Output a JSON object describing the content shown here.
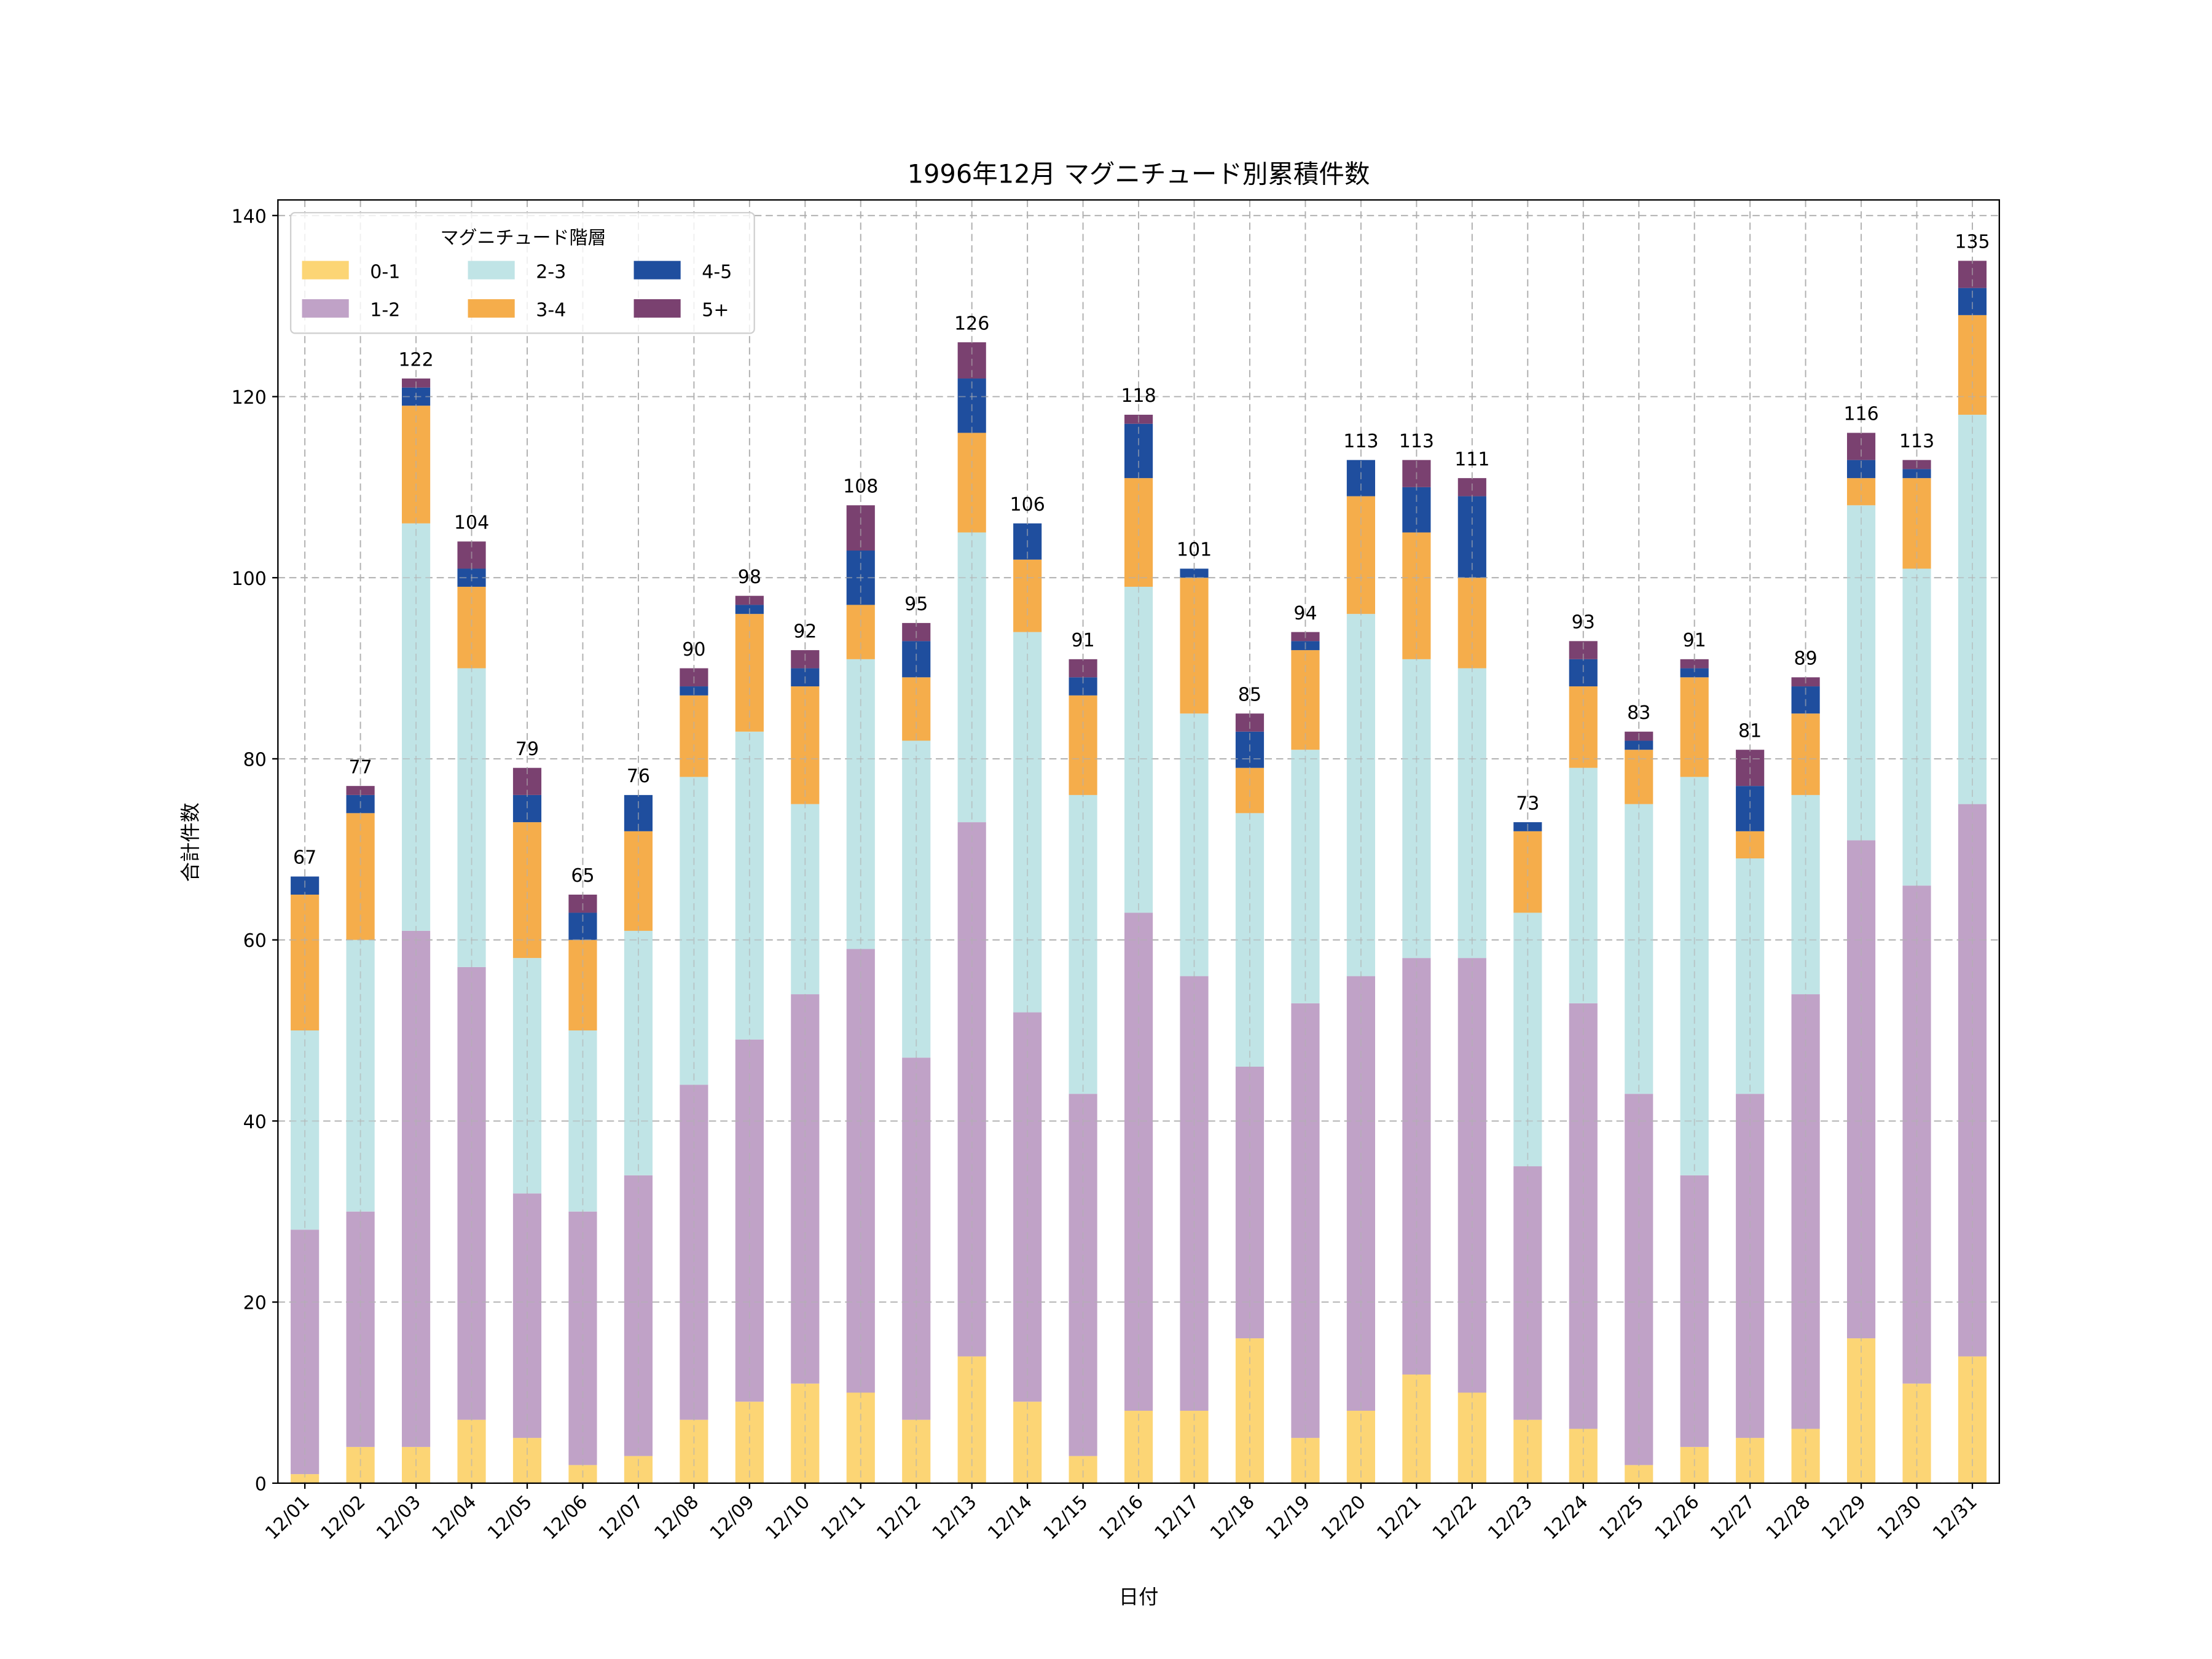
{
  "chart_data": {
    "type": "bar",
    "stacked": true,
    "title": "1996年12月 マグニチュード別累積件数",
    "xlabel": "日付",
    "ylabel": "合計件数",
    "ylim": [
      0,
      140
    ],
    "yticks": [
      0,
      20,
      40,
      60,
      80,
      100,
      120,
      140
    ],
    "grid": true,
    "legend": {
      "title": "マグニチュード階層",
      "placement": "top-left",
      "columns": 3
    },
    "categories": [
      "12/01",
      "12/02",
      "12/03",
      "12/04",
      "12/05",
      "12/06",
      "12/07",
      "12/08",
      "12/09",
      "12/10",
      "12/11",
      "12/12",
      "12/13",
      "12/14",
      "12/15",
      "12/16",
      "12/17",
      "12/18",
      "12/19",
      "12/20",
      "12/21",
      "12/22",
      "12/23",
      "12/24",
      "12/25",
      "12/26",
      "12/27",
      "12/28",
      "12/29",
      "12/30",
      "12/31"
    ],
    "series": [
      {
        "name": "0-1",
        "color": "#fcd575",
        "values": [
          1,
          4,
          4,
          7,
          5,
          2,
          3,
          7,
          9,
          11,
          10,
          7,
          14,
          9,
          3,
          8,
          8,
          16,
          5,
          8,
          12,
          10,
          7,
          6,
          2,
          4,
          5,
          6,
          16,
          11,
          14
        ]
      },
      {
        "name": "1-2",
        "color": "#c0a2c7",
        "values": [
          27,
          26,
          57,
          50,
          27,
          28,
          31,
          37,
          40,
          43,
          49,
          40,
          59,
          43,
          40,
          55,
          48,
          30,
          48,
          48,
          46,
          48,
          28,
          47,
          41,
          30,
          38,
          48,
          55,
          55,
          61
        ]
      },
      {
        "name": "2-3",
        "color": "#c0e4e6",
        "values": [
          22,
          30,
          45,
          33,
          26,
          20,
          27,
          34,
          34,
          21,
          32,
          35,
          32,
          42,
          33,
          36,
          29,
          28,
          28,
          40,
          33,
          32,
          28,
          26,
          32,
          44,
          26,
          22,
          37,
          35,
          43
        ]
      },
      {
        "name": "3-4",
        "color": "#f5ad4b",
        "values": [
          15,
          14,
          13,
          9,
          15,
          10,
          11,
          9,
          13,
          13,
          6,
          7,
          11,
          8,
          11,
          12,
          15,
          5,
          11,
          13,
          14,
          10,
          9,
          9,
          6,
          11,
          3,
          9,
          3,
          10,
          11
        ]
      },
      {
        "name": "4-5",
        "color": "#1f4e9e",
        "values": [
          2,
          2,
          2,
          2,
          3,
          3,
          4,
          1,
          1,
          2,
          6,
          4,
          6,
          4,
          2,
          6,
          1,
          4,
          1,
          4,
          5,
          9,
          1,
          3,
          1,
          1,
          5,
          3,
          2,
          1,
          3
        ]
      },
      {
        "name": "5+",
        "color": "#7a4170",
        "values": [
          0,
          1,
          1,
          3,
          3,
          2,
          0,
          2,
          1,
          2,
          5,
          2,
          4,
          0,
          2,
          1,
          0,
          2,
          1,
          0,
          3,
          2,
          0,
          2,
          1,
          1,
          4,
          1,
          3,
          1,
          3
        ]
      }
    ],
    "totals": [
      "67",
      "77",
      "122",
      "104",
      "79",
      "65",
      "76",
      "90",
      "98",
      "92",
      "108",
      "95",
      "126",
      "106",
      "91",
      "118",
      "101",
      "85",
      "94",
      "113",
      "113",
      "111",
      "73",
      "93",
      "83",
      "91",
      "81",
      "89",
      "116",
      "113",
      "135"
    ]
  }
}
